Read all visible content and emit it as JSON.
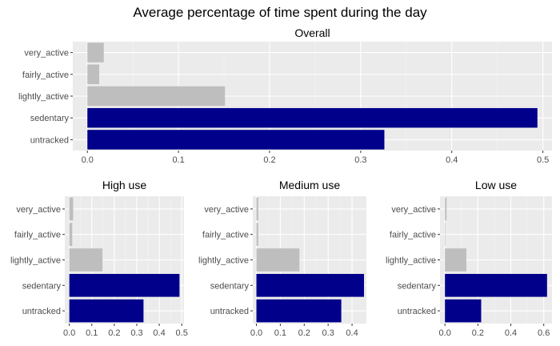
{
  "title": "Average percentage of time spent during the day",
  "colors": {
    "panel_background": "#ebebeb",
    "grid_major": "#ffffff",
    "grid_minor": "#f4f4f4",
    "bar_gray": "#bebebe",
    "bar_navy": "#00008b",
    "axis_text": "#4d4d4d"
  },
  "chart_data": [
    {
      "type": "bar",
      "orientation": "horizontal",
      "title": "Overall",
      "categories": [
        "very_active",
        "fairly_active",
        "lightly_active",
        "sedentary",
        "untracked"
      ],
      "values": [
        0.018,
        0.013,
        0.151,
        0.494,
        0.326
      ],
      "bar_colors": [
        "gray",
        "gray",
        "gray",
        "navy",
        "navy"
      ],
      "xlim": [
        -0.016,
        0.51
      ],
      "xticks": [
        0.0,
        0.1,
        0.2,
        0.3,
        0.4,
        0.5
      ],
      "xtick_labels": [
        "0.0",
        "0.1",
        "0.2",
        "0.3",
        "0.4",
        "0.5"
      ],
      "grid": true
    },
    {
      "type": "bar",
      "orientation": "horizontal",
      "title": "High use",
      "categories": [
        "very_active",
        "fairly_active",
        "lightly_active",
        "sedentary",
        "untracked"
      ],
      "values": [
        0.017,
        0.013,
        0.148,
        0.49,
        0.33
      ],
      "bar_colors": [
        "gray",
        "gray",
        "gray",
        "navy",
        "navy"
      ],
      "xlim": [
        -0.02,
        0.51
      ],
      "xticks": [
        0.0,
        0.1,
        0.2,
        0.3,
        0.4,
        0.5
      ],
      "xtick_labels": [
        "0.0",
        "0.1",
        "0.2",
        "0.3",
        "0.4",
        "0.5"
      ],
      "grid": true
    },
    {
      "type": "bar",
      "orientation": "horizontal",
      "title": "Medium use",
      "categories": [
        "very_active",
        "fairly_active",
        "lightly_active",
        "sedentary",
        "untracked"
      ],
      "values": [
        0.008,
        0.008,
        0.18,
        0.45,
        0.355
      ],
      "bar_colors": [
        "gray",
        "gray",
        "gray",
        "navy",
        "navy"
      ],
      "xlim": [
        -0.015,
        0.46
      ],
      "xticks": [
        0.0,
        0.1,
        0.2,
        0.3,
        0.4
      ],
      "xtick_labels": [
        "0.0",
        "0.1",
        "0.2",
        "0.3",
        "0.4"
      ],
      "grid": true
    },
    {
      "type": "bar",
      "orientation": "horizontal",
      "title": "Low use",
      "categories": [
        "very_active",
        "fairly_active",
        "lightly_active",
        "sedentary",
        "untracked"
      ],
      "values": [
        0.01,
        0.003,
        0.13,
        0.62,
        0.22
      ],
      "bar_colors": [
        "gray",
        "gray",
        "gray",
        "navy",
        "navy"
      ],
      "xlim": [
        -0.03,
        0.65
      ],
      "xticks": [
        0.0,
        0.2,
        0.4,
        0.6
      ],
      "xtick_labels": [
        "0.0",
        "0.2",
        "0.4",
        "0.6"
      ],
      "grid": true
    }
  ]
}
